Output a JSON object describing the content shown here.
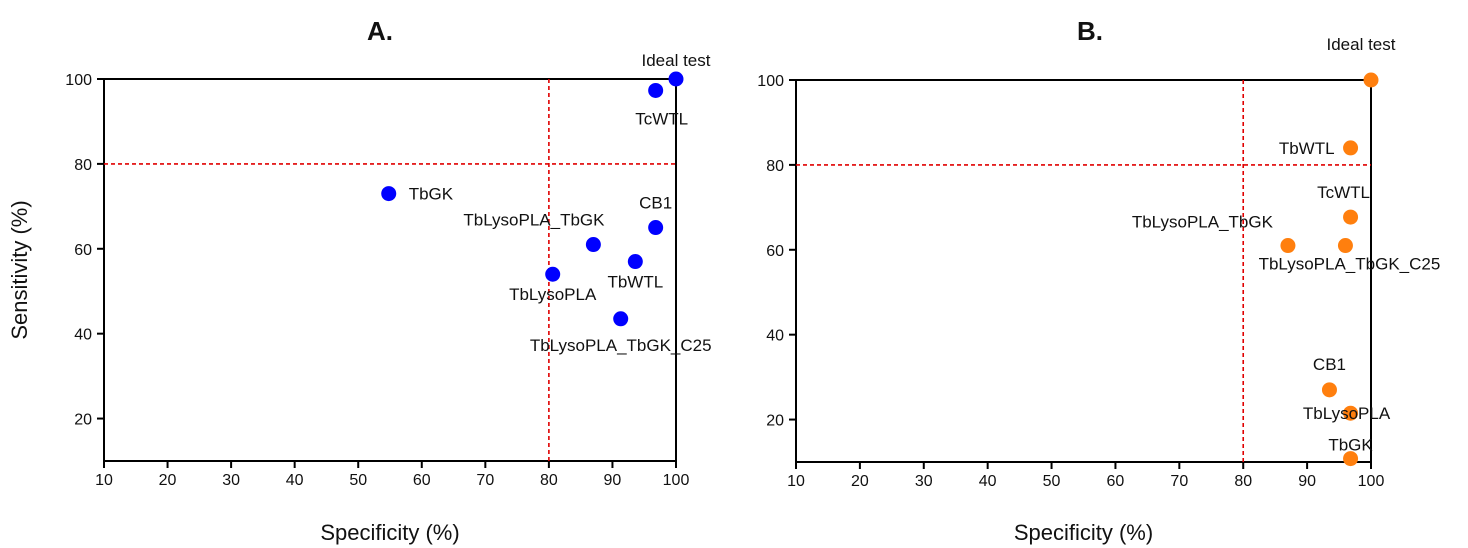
{
  "chart_data": [
    {
      "panel_title": "A.",
      "type": "scatter",
      "xlabel": "Specificity (%)",
      "ylabel": "Sensitivity (%)",
      "xlim": [
        10,
        100
      ],
      "ylim": [
        10,
        100
      ],
      "xticks": [
        10,
        20,
        30,
        40,
        50,
        60,
        70,
        80,
        90,
        100
      ],
      "yticks": [
        20,
        40,
        60,
        80,
        100
      ],
      "reference_lines": {
        "x": 80,
        "y": 80,
        "color": "#e00000",
        "style": "dashed"
      },
      "marker_color": "#0000ff",
      "points": [
        {
          "label": "Ideal test",
          "x": 100,
          "y": 100
        },
        {
          "label": "TcWTL",
          "x": 96.8,
          "y": 97.3
        },
        {
          "label": "TbGK",
          "x": 54.8,
          "y": 73
        },
        {
          "label": "CB1",
          "x": 96.8,
          "y": 65
        },
        {
          "label": "TbLysoPLA_TbGK",
          "x": 87,
          "y": 61
        },
        {
          "label": "TbWTL",
          "x": 93.6,
          "y": 57
        },
        {
          "label": "TbLysoPLA",
          "x": 80.6,
          "y": 54
        },
        {
          "label": "TbLysoPLA_TbGK_C25",
          "x": 91.3,
          "y": 43.5
        }
      ]
    },
    {
      "panel_title": "B.",
      "type": "scatter",
      "xlabel": "Specificity (%)",
      "ylabel": "",
      "xlim": [
        10,
        100
      ],
      "ylim": [
        10,
        100
      ],
      "xticks": [
        10,
        20,
        30,
        40,
        50,
        60,
        70,
        80,
        90,
        100
      ],
      "yticks": [
        20,
        40,
        60,
        80,
        100
      ],
      "reference_lines": {
        "x": 80,
        "y": 80,
        "color": "#e00000",
        "style": "dashed"
      },
      "marker_color": "#ff7f0e",
      "points": [
        {
          "label": "Ideal test",
          "x": 100,
          "y": 100
        },
        {
          "label": "TbWTL",
          "x": 96.8,
          "y": 84
        },
        {
          "label": "TcWTL",
          "x": 96.8,
          "y": 67.7
        },
        {
          "label": "TbLysoPLA_TbGK",
          "x": 87,
          "y": 61
        },
        {
          "label": "TbLysoPLA_TbGK_C25",
          "x": 96,
          "y": 61
        },
        {
          "label": "CB1",
          "x": 93.5,
          "y": 27
        },
        {
          "label": "TbLysoPLA",
          "x": 96.8,
          "y": 21.5
        },
        {
          "label": "TbGK",
          "x": 96.8,
          "y": 10.8
        }
      ]
    }
  ]
}
